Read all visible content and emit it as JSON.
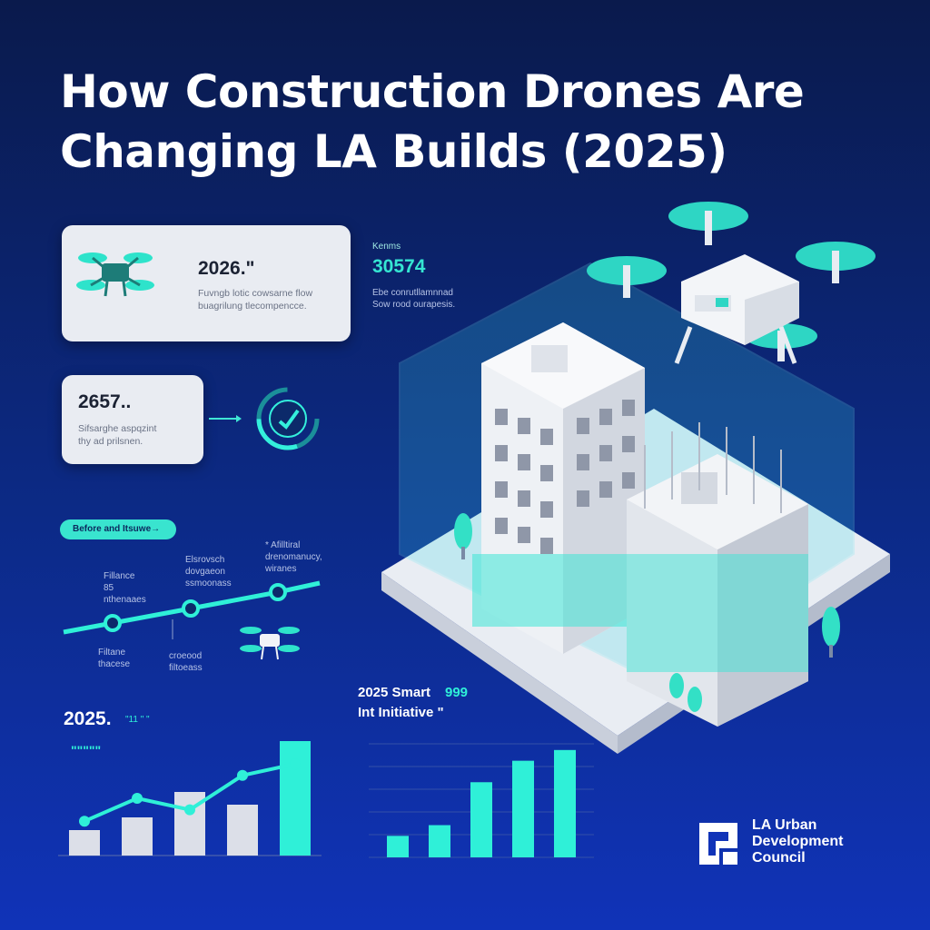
{
  "header": {
    "title": "How Construction Drones Are Changing LA Builds (2025)"
  },
  "card_top": {
    "number": "2026.\"",
    "sub_line1": "Fuvngb lotic cowsarne flow",
    "sub_line2": "buagrilung tlecompencce.",
    "icon": "drone-icon"
  },
  "stat_right": {
    "label": "Kenms",
    "value": "30574",
    "sub_line1": "Ebe conrutllamnnad",
    "sub_line2": "Sow rood ourapesis."
  },
  "card_mid": {
    "number": "2657..",
    "sub_line1": "Sifsarghe aspqzint",
    "sub_line2": "thy ad prilsnen.",
    "gauge_icon": "check-gauge-icon"
  },
  "timeline": {
    "pill_label": "Before and Itsuwe→",
    "labels": [
      {
        "l1": "Fillance",
        "l2": "85",
        "l3": "nthenaaes"
      },
      {
        "l1": "Elsrovsch",
        "l2": "dovgaeon",
        "l3": "ssmoonass"
      },
      {
        "l1": "* Afilltiral",
        "l2": "drenomanucy,",
        "l3": "wiranes"
      },
      {
        "l1": "Filtane",
        "l2": "thacese"
      },
      {
        "l1": "croeood",
        "l2": "filtoeass"
      }
    ]
  },
  "left_chart": {
    "heading": "2025.",
    "heading_suffix": "\"11 \" \"",
    "sub_mark": "\"\"\"\"\"",
    "accent": "#2ff0d8",
    "bar_color": "#dcdfe8"
  },
  "right_chart": {
    "heading_line1": "2025 Smart",
    "heading_num": "999",
    "heading_line2": "Int Initiative \"",
    "accent": "#2ff0d8"
  },
  "chart_data": [
    {
      "type": "bar",
      "title": "",
      "categories": [
        "",
        "",
        "",
        "",
        ""
      ],
      "series": [
        {
          "values": [
            2,
            3,
            5,
            4,
            9
          ]
        },
        {
          "values": [
            3,
            5,
            4,
            7,
            8
          ]
        }
      ],
      "xlabel": "",
      "ylabel": "",
      "grid": false,
      "legend": "none"
    },
    {
      "type": "bar",
      "title": "",
      "categories": [
        "",
        "",
        "",
        "",
        ""
      ],
      "series": [
        {
          "values": [
            2,
            3,
            7,
            9,
            10
          ]
        }
      ],
      "xlabel": "",
      "ylabel": "",
      "grid": true,
      "legend": "none"
    }
  ],
  "footer": {
    "org_line1": "LA Urban",
    "org_line2": "Development",
    "org_line3": "Council",
    "logo_icon": "la-udc-logo-icon"
  },
  "illustration": {
    "drone_icon": "quadcopter-drone-icon",
    "building_icon": "isometric-building-icon"
  }
}
